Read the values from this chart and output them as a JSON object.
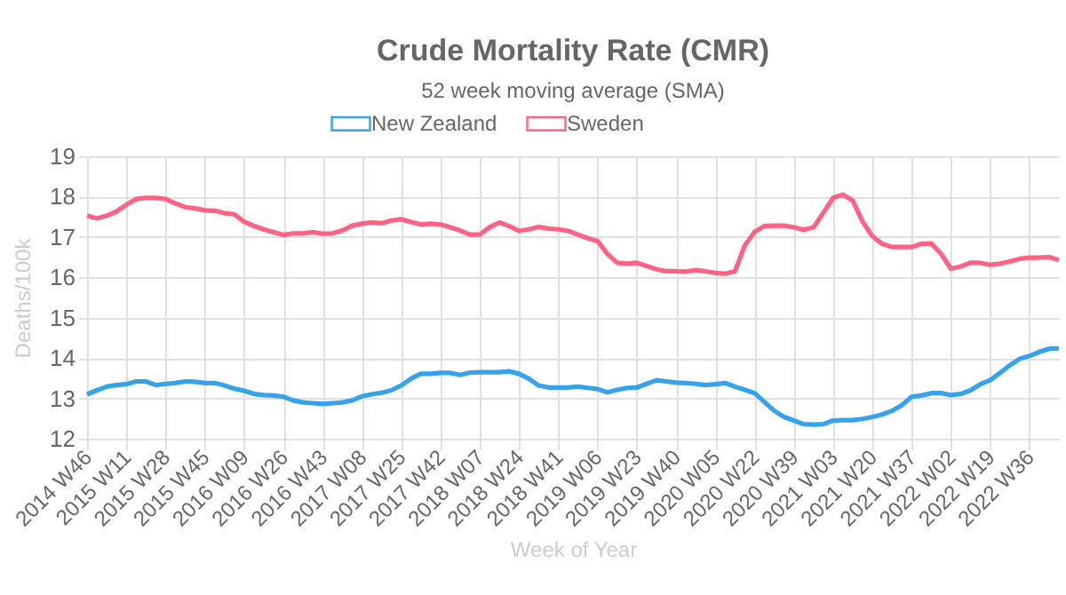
{
  "chart_data": {
    "type": "line",
    "title": "Crude Mortality Rate (CMR)",
    "subtitle": "52 week moving average (SMA)",
    "xlabel": "Week of Year",
    "ylabel": "Deaths/100k",
    "categories": [
      "2014 W46",
      null,
      null,
      null,
      "2015 W11",
      null,
      null,
      null,
      "2015 W28",
      null,
      null,
      null,
      "2015 W45",
      null,
      null,
      null,
      "2016 W09",
      null,
      null,
      null,
      "2016 W26",
      null,
      null,
      null,
      "2016 W43",
      null,
      null,
      null,
      "2017 W08",
      null,
      null,
      null,
      "2017 W25",
      null,
      null,
      null,
      "2017 W42",
      null,
      null,
      null,
      "2018 W07",
      null,
      null,
      null,
      "2018 W24",
      null,
      null,
      null,
      "2018 W41",
      null,
      null,
      null,
      "2019 W06",
      null,
      null,
      null,
      "2019 W23",
      null,
      null,
      null,
      "2019 W40",
      null,
      null,
      null,
      "2020 W05",
      null,
      null,
      null,
      "2020 W22",
      null,
      null,
      null,
      "2020 W39",
      null,
      null,
      null,
      "2021 W03",
      null,
      null,
      null,
      "2021 W20",
      null,
      null,
      null,
      "2021 W37",
      null,
      null,
      null,
      "2022 W02",
      null,
      null,
      null,
      "2022 W19",
      null,
      null,
      null,
      "2022 W36",
      null,
      null,
      null
    ],
    "series": [
      {
        "name": "New Zealand",
        "color": "#36a2eb",
        "values": [
          13.1,
          13.2,
          13.29,
          13.33,
          13.35,
          13.42,
          13.42,
          13.33,
          13.36,
          13.38,
          13.42,
          13.41,
          13.38,
          13.38,
          13.32,
          13.24,
          13.19,
          13.11,
          13.08,
          13.07,
          13.04,
          12.95,
          12.9,
          12.88,
          12.86,
          12.88,
          12.9,
          12.95,
          13.05,
          13.1,
          13.14,
          13.2,
          13.32,
          13.49,
          13.61,
          13.61,
          13.63,
          13.63,
          13.58,
          13.64,
          13.65,
          13.65,
          13.65,
          13.67,
          13.61,
          13.49,
          13.32,
          13.27,
          13.27,
          13.27,
          13.29,
          13.26,
          13.23,
          13.15,
          13.21,
          13.26,
          13.27,
          13.36,
          13.45,
          13.42,
          13.39,
          13.38,
          13.36,
          13.33,
          13.35,
          13.38,
          13.29,
          13.21,
          13.13,
          12.91,
          12.69,
          12.54,
          12.45,
          12.36,
          12.35,
          12.36,
          12.45,
          12.46,
          12.46,
          12.49,
          12.54,
          12.6,
          12.69,
          12.83,
          13.04,
          13.07,
          13.13,
          13.13,
          13.08,
          13.11,
          13.2,
          13.35,
          13.45,
          13.63,
          13.82,
          13.98,
          14.05,
          14.15,
          14.23,
          14.24
        ]
      },
      {
        "name": "Sweden",
        "color": "#ff6384",
        "values": [
          17.53,
          17.46,
          17.53,
          17.63,
          17.8,
          17.94,
          17.97,
          17.97,
          17.94,
          17.83,
          17.74,
          17.71,
          17.66,
          17.65,
          17.59,
          17.56,
          17.38,
          17.27,
          17.19,
          17.12,
          17.05,
          17.09,
          17.09,
          17.12,
          17.08,
          17.09,
          17.16,
          17.28,
          17.33,
          17.36,
          17.34,
          17.41,
          17.44,
          17.37,
          17.31,
          17.33,
          17.31,
          17.24,
          17.16,
          17.06,
          17.06,
          17.24,
          17.36,
          17.27,
          17.15,
          17.19,
          17.25,
          17.21,
          17.19,
          17.15,
          17.06,
          16.97,
          16.9,
          16.58,
          16.36,
          16.34,
          16.36,
          16.28,
          16.2,
          16.15,
          16.15,
          16.14,
          16.18,
          16.15,
          16.11,
          16.09,
          16.15,
          16.79,
          17.13,
          17.27,
          17.28,
          17.28,
          17.24,
          17.18,
          17.24,
          17.6,
          17.97,
          18.05,
          17.9,
          17.38,
          17.02,
          16.83,
          16.75,
          16.75,
          16.75,
          16.83,
          16.84,
          16.58,
          16.21,
          16.27,
          16.36,
          16.36,
          16.31,
          16.34,
          16.39,
          16.46,
          16.49,
          16.49,
          16.5,
          16.43
        ]
      }
    ],
    "ylim": [
      12,
      19
    ],
    "yticks": [
      12,
      13,
      14,
      15,
      16,
      17,
      18,
      19
    ],
    "grid": true,
    "legend": "top",
    "marker": "none",
    "line_style": "solid"
  }
}
